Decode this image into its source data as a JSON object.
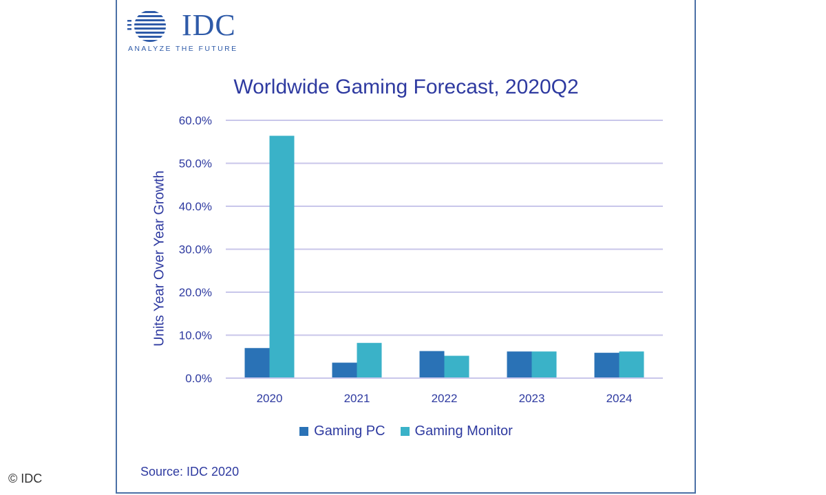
{
  "logo": {
    "word": "IDC",
    "tagline": "ANALYZE THE FUTURE"
  },
  "copyright": "© IDC",
  "source": "Source: IDC 2020",
  "colors": {
    "gaming_pc": "#2a72b6",
    "gaming_monitor": "#3ab2c8",
    "grid": "#c8c6ea",
    "text": "#2e3aa0"
  },
  "chart_data": {
    "type": "bar",
    "title": "Worldwide Gaming Forecast, 2020Q2",
    "xlabel": "",
    "ylabel": "Units Year Over Year Growth",
    "categories": [
      "2020",
      "2021",
      "2022",
      "2023",
      "2024"
    ],
    "series": [
      {
        "name": "Gaming PC",
        "values": [
          7.0,
          3.6,
          6.3,
          6.2,
          5.9
        ]
      },
      {
        "name": "Gaming Monitor",
        "values": [
          56.4,
          8.2,
          5.2,
          6.2,
          6.2
        ]
      }
    ],
    "ylim": [
      0,
      60
    ],
    "yticks": [
      "0.0%",
      "10.0%",
      "20.0%",
      "30.0%",
      "40.0%",
      "50.0%",
      "60.0%"
    ],
    "grid": true,
    "legend": "bottom"
  }
}
